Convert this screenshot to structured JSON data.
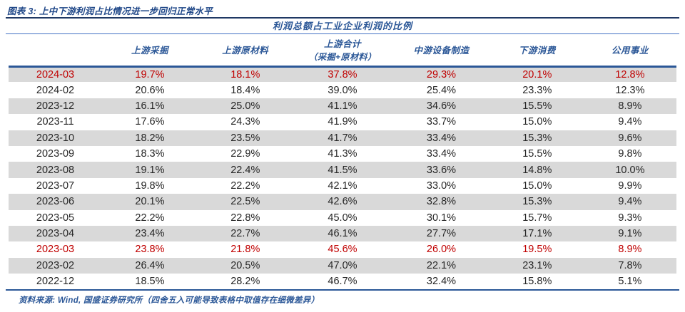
{
  "caption": "图表 3: 上中下游利润占比情况进一步回归正常水平",
  "table": {
    "title": "利润总额占工业企业利润的比例",
    "columns": [
      {
        "line1": "上游采掘"
      },
      {
        "line1": "上游原材料"
      },
      {
        "line1": "上游合计",
        "line2": "（采掘+原材料）"
      },
      {
        "line1": "中游设备制造"
      },
      {
        "line1": "下游消费"
      },
      {
        "line1": "公用事业"
      }
    ],
    "rows": [
      {
        "date": "2024-03",
        "values": [
          "19.7%",
          "18.1%",
          "37.8%",
          "29.3%",
          "20.1%",
          "12.8%"
        ],
        "highlight": true
      },
      {
        "date": "2024-02",
        "values": [
          "20.6%",
          "18.4%",
          "39.0%",
          "25.4%",
          "23.3%",
          "12.3%"
        ],
        "highlight": false
      },
      {
        "date": "2023-12",
        "values": [
          "16.1%",
          "25.0%",
          "41.1%",
          "34.6%",
          "15.5%",
          "8.9%"
        ],
        "highlight": false
      },
      {
        "date": "2023-11",
        "values": [
          "17.6%",
          "24.3%",
          "41.9%",
          "33.7%",
          "15.0%",
          "9.4%"
        ],
        "highlight": false
      },
      {
        "date": "2023-10",
        "values": [
          "18.2%",
          "23.5%",
          "41.7%",
          "33.4%",
          "15.3%",
          "9.6%"
        ],
        "highlight": false
      },
      {
        "date": "2023-09",
        "values": [
          "18.3%",
          "22.9%",
          "41.3%",
          "33.4%",
          "15.5%",
          "9.8%"
        ],
        "highlight": false
      },
      {
        "date": "2023-08",
        "values": [
          "19.1%",
          "22.4%",
          "41.5%",
          "33.6%",
          "14.8%",
          "10.0%"
        ],
        "highlight": false
      },
      {
        "date": "2023-07",
        "values": [
          "19.8%",
          "22.2%",
          "42.1%",
          "33.0%",
          "15.0%",
          "9.9%"
        ],
        "highlight": false
      },
      {
        "date": "2023-06",
        "values": [
          "20.1%",
          "22.5%",
          "42.6%",
          "32.8%",
          "15.3%",
          "9.4%"
        ],
        "highlight": false
      },
      {
        "date": "2023-05",
        "values": [
          "22.2%",
          "22.8%",
          "45.0%",
          "30.1%",
          "15.7%",
          "9.3%"
        ],
        "highlight": false
      },
      {
        "date": "2023-04",
        "values": [
          "23.4%",
          "22.7%",
          "46.1%",
          "27.7%",
          "17.1%",
          "9.1%"
        ],
        "highlight": false
      },
      {
        "date": "2023-03",
        "values": [
          "23.8%",
          "21.8%",
          "45.6%",
          "26.0%",
          "19.5%",
          "8.9%"
        ],
        "highlight": true
      },
      {
        "date": "2023-02",
        "values": [
          "26.4%",
          "20.5%",
          "47.0%",
          "22.1%",
          "23.1%",
          "7.8%"
        ],
        "highlight": false
      },
      {
        "date": "2022-12",
        "values": [
          "18.5%",
          "28.2%",
          "46.7%",
          "32.4%",
          "15.8%",
          "5.1%"
        ],
        "highlight": false
      }
    ]
  },
  "footer": "资料来源: Wind, 国盛证券研究所（四舍五入可能导致表格中取值存在细微差异）",
  "colors": {
    "accent_blue": "#2b5797",
    "caption_navy": "#1f3864",
    "highlight_red": "#c00000",
    "row_shade_gray": "#d9d9d9",
    "body_text": "#262626"
  },
  "chart_data": {
    "type": "table",
    "title": "利润总额占工业企业利润的比例",
    "categories": [
      "2024-03",
      "2024-02",
      "2023-12",
      "2023-11",
      "2023-10",
      "2023-09",
      "2023-08",
      "2023-07",
      "2023-06",
      "2023-05",
      "2023-04",
      "2023-03",
      "2023-02",
      "2022-12"
    ],
    "series": [
      {
        "name": "上游采掘",
        "values": [
          19.7,
          20.6,
          16.1,
          17.6,
          18.2,
          18.3,
          19.1,
          19.8,
          20.1,
          22.2,
          23.4,
          23.8,
          26.4,
          18.5
        ]
      },
      {
        "name": "上游原材料",
        "values": [
          18.1,
          18.4,
          25.0,
          24.3,
          23.5,
          22.9,
          22.4,
          22.2,
          22.5,
          22.8,
          22.7,
          21.8,
          20.5,
          28.2
        ]
      },
      {
        "name": "上游合计（采掘+原材料）",
        "values": [
          37.8,
          39.0,
          41.1,
          41.9,
          41.7,
          41.3,
          41.5,
          42.1,
          42.6,
          45.0,
          46.1,
          45.6,
          47.0,
          46.7
        ]
      },
      {
        "name": "中游设备制造",
        "values": [
          29.3,
          25.4,
          34.6,
          33.7,
          33.4,
          33.4,
          33.6,
          33.0,
          32.8,
          30.1,
          27.7,
          26.0,
          22.1,
          32.4
        ]
      },
      {
        "name": "下游消费",
        "values": [
          20.1,
          23.3,
          15.5,
          15.0,
          15.3,
          15.5,
          14.8,
          15.0,
          15.3,
          15.7,
          17.1,
          19.5,
          23.1,
          15.8
        ]
      },
      {
        "name": "公用事业",
        "values": [
          12.8,
          12.3,
          8.9,
          9.4,
          9.6,
          9.8,
          10.0,
          9.9,
          9.4,
          9.3,
          9.1,
          8.9,
          7.8,
          5.1
        ]
      }
    ],
    "unit": "%",
    "highlighted_rows": [
      "2024-03",
      "2023-03"
    ]
  }
}
